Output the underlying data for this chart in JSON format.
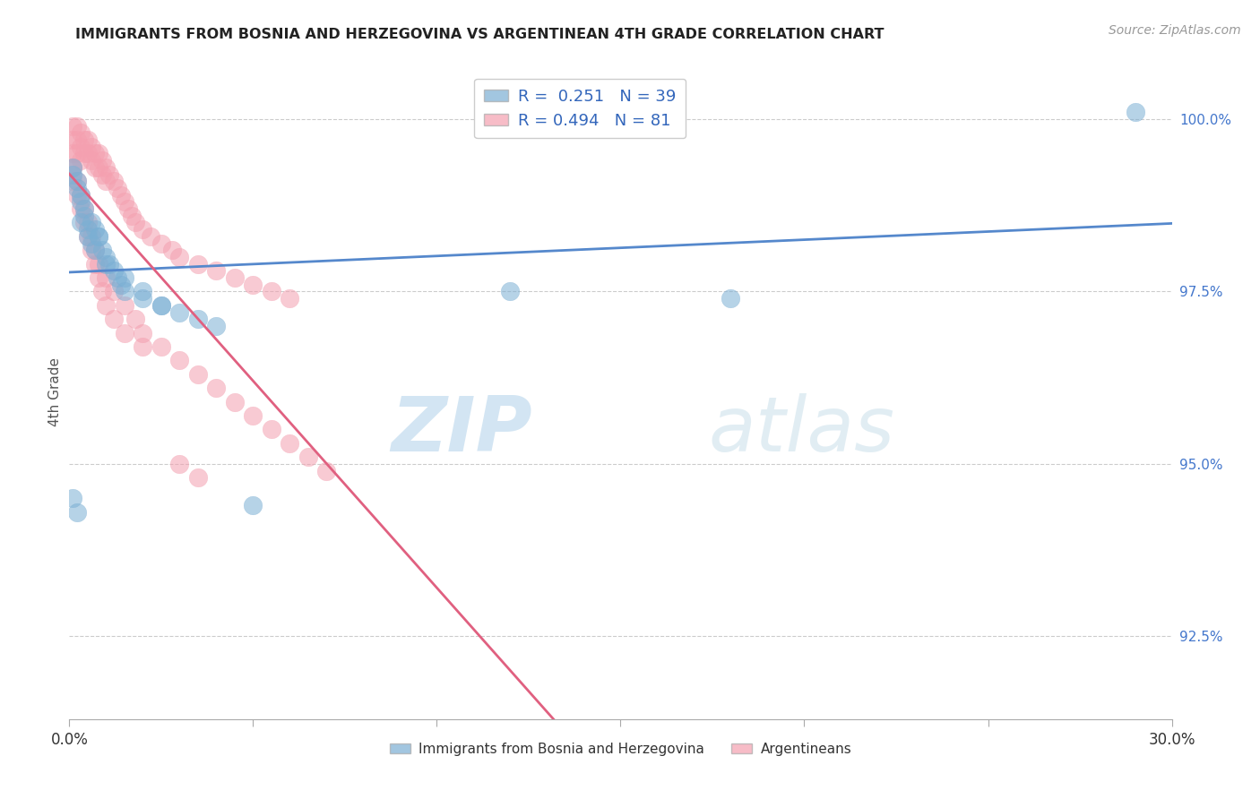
{
  "title": "IMMIGRANTS FROM BOSNIA AND HERZEGOVINA VS ARGENTINEAN 4TH GRADE CORRELATION CHART",
  "source": "Source: ZipAtlas.com",
  "ylabel": "4th Grade",
  "ylabel_right_labels": [
    "100.0%",
    "97.5%",
    "95.0%",
    "92.5%"
  ],
  "ylabel_right_values": [
    1.0,
    0.975,
    0.95,
    0.925
  ],
  "x_min": 0.0,
  "x_max": 0.3,
  "y_min": 0.913,
  "y_max": 1.008,
  "legend_blue_label": "Immigrants from Bosnia and Herzegovina",
  "legend_pink_label": "Argentineans",
  "R_blue": 0.251,
  "N_blue": 39,
  "R_pink": 0.494,
  "N_pink": 81,
  "blue_color": "#7BAFD4",
  "pink_color": "#F4A0B0",
  "blue_line_color": "#5588CC",
  "pink_line_color": "#E06080",
  "watermark_zip": "ZIP",
  "watermark_atlas": "atlas",
  "blue_x": [
    0.001,
    0.002,
    0.003,
    0.004,
    0.005,
    0.006,
    0.007,
    0.008,
    0.009,
    0.01,
    0.011,
    0.012,
    0.013,
    0.014,
    0.015,
    0.02,
    0.025,
    0.03,
    0.035,
    0.04,
    0.003,
    0.005,
    0.007,
    0.01,
    0.015,
    0.02,
    0.025,
    0.001,
    0.002,
    0.003,
    0.004,
    0.006,
    0.008,
    0.12,
    0.18,
    0.001,
    0.002,
    0.29,
    0.05
  ],
  "blue_y": [
    0.992,
    0.99,
    0.988,
    0.986,
    0.984,
    0.982,
    0.984,
    0.983,
    0.981,
    0.98,
    0.979,
    0.978,
    0.977,
    0.976,
    0.975,
    0.974,
    0.973,
    0.972,
    0.971,
    0.97,
    0.985,
    0.983,
    0.981,
    0.979,
    0.977,
    0.975,
    0.973,
    0.993,
    0.991,
    0.989,
    0.987,
    0.985,
    0.983,
    0.975,
    0.974,
    0.945,
    0.943,
    1.001,
    0.944
  ],
  "pink_x": [
    0.001,
    0.001,
    0.001,
    0.001,
    0.002,
    0.002,
    0.002,
    0.003,
    0.003,
    0.003,
    0.004,
    0.004,
    0.005,
    0.005,
    0.006,
    0.006,
    0.007,
    0.007,
    0.008,
    0.008,
    0.009,
    0.009,
    0.01,
    0.01,
    0.011,
    0.012,
    0.013,
    0.014,
    0.015,
    0.016,
    0.017,
    0.018,
    0.02,
    0.022,
    0.025,
    0.028,
    0.03,
    0.035,
    0.04,
    0.045,
    0.05,
    0.055,
    0.06,
    0.001,
    0.002,
    0.003,
    0.004,
    0.005,
    0.006,
    0.007,
    0.008,
    0.009,
    0.01,
    0.012,
    0.015,
    0.02,
    0.001,
    0.002,
    0.003,
    0.004,
    0.005,
    0.006,
    0.007,
    0.008,
    0.01,
    0.012,
    0.015,
    0.018,
    0.02,
    0.025,
    0.03,
    0.035,
    0.04,
    0.045,
    0.05,
    0.055,
    0.06,
    0.065,
    0.07,
    0.03,
    0.035
  ],
  "pink_y": [
    0.999,
    0.997,
    0.995,
    0.993,
    0.999,
    0.997,
    0.995,
    0.998,
    0.996,
    0.994,
    0.997,
    0.995,
    0.997,
    0.995,
    0.996,
    0.994,
    0.995,
    0.993,
    0.995,
    0.993,
    0.994,
    0.992,
    0.993,
    0.991,
    0.992,
    0.991,
    0.99,
    0.989,
    0.988,
    0.987,
    0.986,
    0.985,
    0.984,
    0.983,
    0.982,
    0.981,
    0.98,
    0.979,
    0.978,
    0.977,
    0.976,
    0.975,
    0.974,
    0.991,
    0.989,
    0.987,
    0.985,
    0.983,
    0.981,
    0.979,
    0.977,
    0.975,
    0.973,
    0.971,
    0.969,
    0.967,
    0.993,
    0.991,
    0.989,
    0.987,
    0.985,
    0.983,
    0.981,
    0.979,
    0.977,
    0.975,
    0.973,
    0.971,
    0.969,
    0.967,
    0.965,
    0.963,
    0.961,
    0.959,
    0.957,
    0.955,
    0.953,
    0.951,
    0.949,
    0.95,
    0.948
  ]
}
